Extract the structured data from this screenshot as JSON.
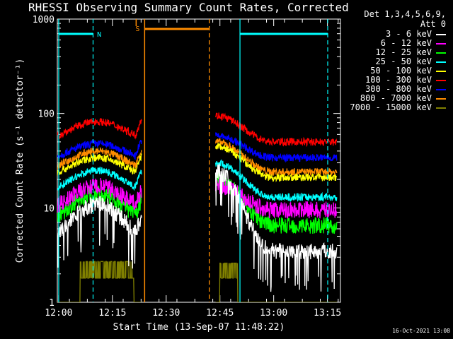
{
  "chart_data": {
    "type": "line",
    "title": "RHESSI Observing Summary Count Rates, Corrected",
    "xlabel": "Start Time (13-Sep-07 11:48:22)",
    "ylabel": "Corrected Count Rate (s⁻¹ detector⁻¹)",
    "yscale": "log",
    "ylim": [
      1,
      1000
    ],
    "xlim_minutes": [
      11.63,
      90.63
    ],
    "x_ticks": [
      "12:00",
      "12:15",
      "12:30",
      "12:45",
      "13:00",
      "13:15"
    ],
    "y_ticks": [
      "1",
      "10",
      "100",
      "1000"
    ],
    "legend_header": [
      "Det 1,3,4,5,6,9,",
      "Att 0"
    ],
    "series": [
      {
        "name": "3 - 6 keV",
        "color": "#ffffff",
        "base": 3.0,
        "peak": 11,
        "post_start": 25,
        "post_end": 3.5
      },
      {
        "name": "6 - 12 keV",
        "color": "#ff00ff",
        "base": 7.5,
        "peak": 17,
        "post_start": 17,
        "post_end": 9.5
      },
      {
        "name": "12 - 25 keV",
        "color": "#00ff00",
        "base": 5.5,
        "peak": 14,
        "post_start": 20,
        "post_end": 6.5
      },
      {
        "name": "25 - 50 keV",
        "color": "#00ffff",
        "base": 12,
        "peak": 25,
        "post_start": 30,
        "post_end": 13
      },
      {
        "name": "50 - 100 keV",
        "color": "#ffff00",
        "base": 18,
        "peak": 34,
        "post_start": 45,
        "post_end": 21
      },
      {
        "name": "100 - 300 keV",
        "color": "#ff0000",
        "base": 45,
        "peak": 82,
        "post_start": 95,
        "post_end": 50
      },
      {
        "name": "300 - 800 keV",
        "color": "#0000ff",
        "base": 28,
        "peak": 48,
        "post_start": 58,
        "post_end": 34
      },
      {
        "name": "800 - 7000 keV",
        "color": "#ff8c00",
        "base": 21,
        "peak": 40,
        "post_start": 50,
        "post_end": 24
      },
      {
        "name": "7000 - 15000 keV",
        "color": "#808000",
        "base": 1.0,
        "peak": 2.5,
        "post_start": 3.0,
        "post_end": 1.0
      }
    ],
    "flags": [
      {
        "label": "N",
        "color": "#00ffff"
      },
      {
        "label": "S",
        "color": "#ff8c00"
      }
    ],
    "footer_stamp": "16-Oct-2021 13:08"
  }
}
